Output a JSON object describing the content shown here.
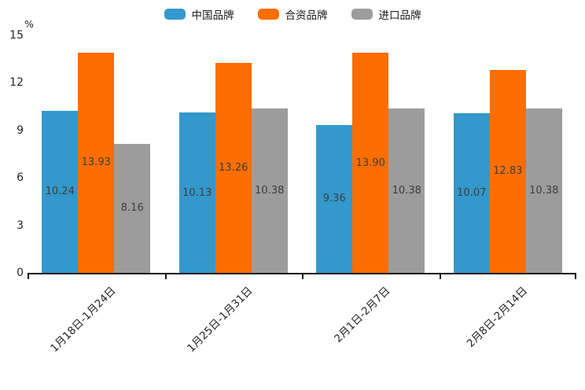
{
  "chart_data": {
    "type": "bar",
    "title": "",
    "xlabel": "",
    "ylabel": "%",
    "categories": [
      "1月18日-1月24日",
      "1月25日-1月31日",
      "2月1日-2月7日",
      "2月8日-2月14日"
    ],
    "series": [
      {
        "name": "中国品牌",
        "color": "#3398cc",
        "values": [
          10.24,
          10.13,
          9.36,
          10.07
        ]
      },
      {
        "name": "合资品牌",
        "color": "#fc6e00",
        "values": [
          13.93,
          13.26,
          13.9,
          12.83
        ]
      },
      {
        "name": "进口品牌",
        "color": "#9c9c9c",
        "values": [
          8.16,
          10.38,
          10.38,
          10.38
        ]
      }
    ],
    "value_labels": [
      [
        "10.24",
        "10.13",
        "9.36",
        "10.07"
      ],
      [
        "13.93",
        "13.26",
        "13.90",
        "12.83"
      ],
      [
        "8.16",
        "10.38",
        "10.38",
        "10.38"
      ]
    ],
    "ylim": [
      0,
      15
    ],
    "yticks": [
      0,
      3,
      6,
      9,
      12,
      15
    ],
    "grid": false,
    "legend_position": "top-center",
    "bar_label_position": "center-inside",
    "axis_color": "#1a1a1a",
    "label_text_color": "#3d3d3d"
  }
}
